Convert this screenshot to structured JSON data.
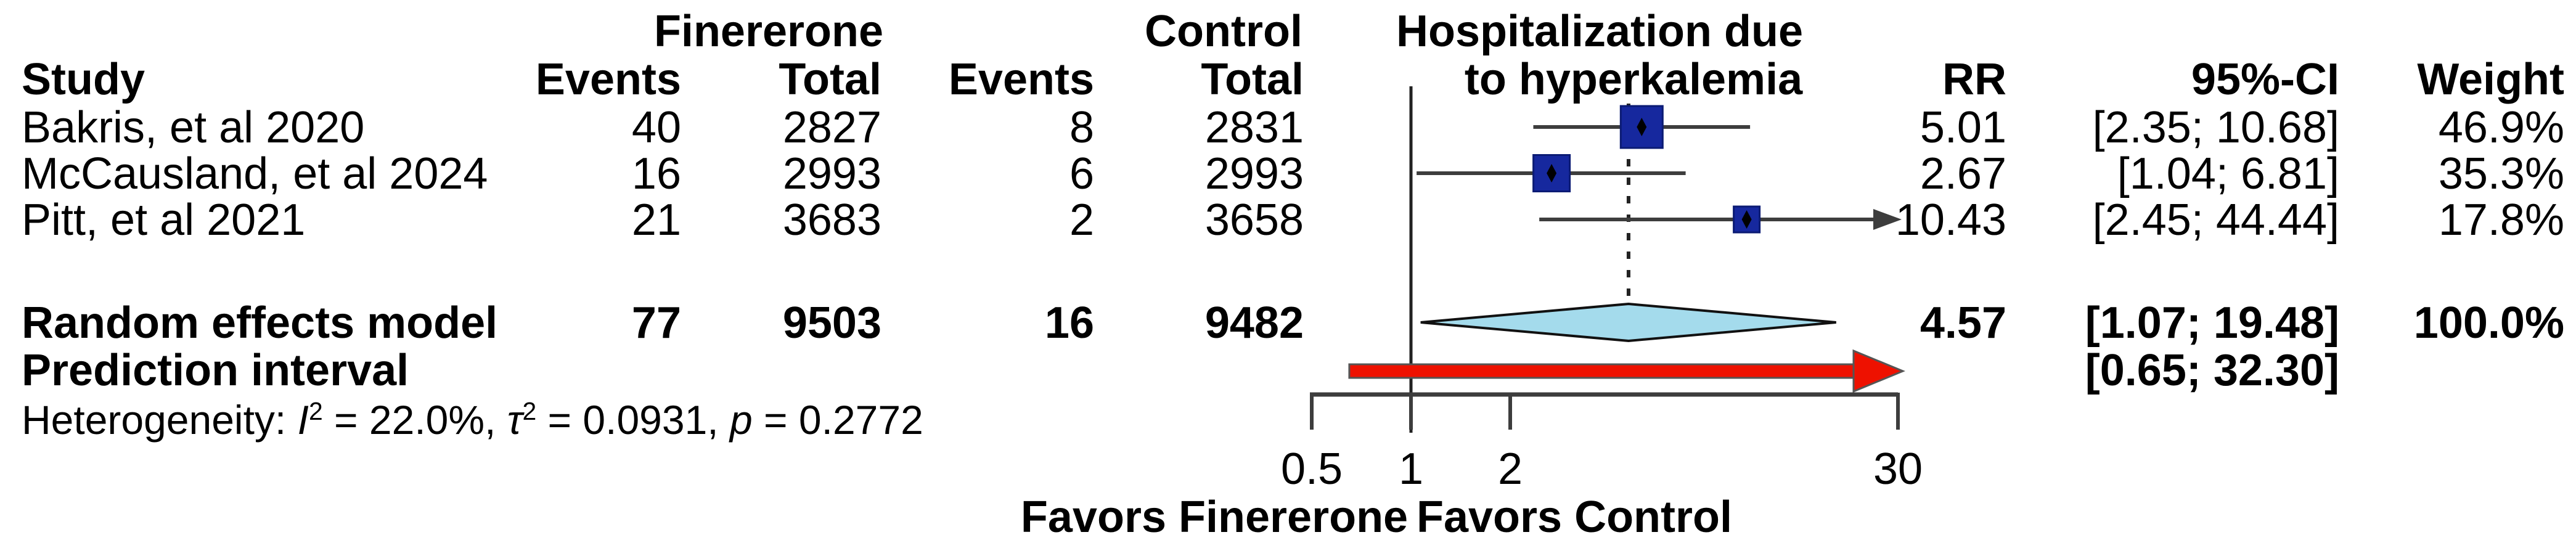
{
  "table": {
    "group_headers": {
      "treatment": "Finererone",
      "control": "Control"
    },
    "plot_header_line1": "Hospitalization due",
    "plot_header_line2": "to hyperkalemia",
    "col_headers": {
      "study": "Study",
      "events_trt": "Events",
      "total_trt": "Total",
      "events_ctl": "Events",
      "total_ctl": "Total",
      "rr": "RR",
      "ci": "95%-CI",
      "weight": "Weight"
    },
    "rows": [
      {
        "study": "Bakris, et al 2020",
        "e1": "40",
        "t1": "2827",
        "e2": "8",
        "t2": "2831",
        "rr": "5.01",
        "ci": "[2.35; 10.68]",
        "weight": "46.9%"
      },
      {
        "study": "McCausland, et al 2024",
        "e1": "16",
        "t1": "2993",
        "e2": "6",
        "t2": "2993",
        "rr": "2.67",
        "ci": "[1.04; 6.81]",
        "weight": "35.3%"
      },
      {
        "study": "Pitt, et al 2021",
        "e1": "21",
        "t1": "3683",
        "e2": "2",
        "t2": "3658",
        "rr": "10.43",
        "ci": "[2.45; 44.44]",
        "weight": "17.8%"
      }
    ],
    "summary_row": {
      "study": "Random effects model",
      "e1": "77",
      "t1": "9503",
      "e2": "16",
      "t2": "9482",
      "rr": "4.57",
      "ci": "[1.07; 19.48]",
      "weight": "100.0%"
    },
    "prediction_row": {
      "label": "Prediction interval",
      "ci": "[0.65; 32.30]"
    },
    "heterogeneity": {
      "prefix": "Heterogeneity: ",
      "i_sym": "I",
      "i_sup": "2",
      "i_val": " = 22.0%, ",
      "tau_sym": "τ",
      "tau_sup": "2",
      "tau_val": " = 0.0931, ",
      "p_sym": "p",
      "p_val": " = 0.2772"
    }
  },
  "axis": {
    "tick_labels": [
      "0.5",
      "1",
      "2",
      "30"
    ],
    "favors_left": "Favors Finererone",
    "favors_right": "Favors Control"
  },
  "chart_data": {
    "type": "forest",
    "x_scale": "log",
    "x_range": [
      0.5,
      30
    ],
    "x_ticks": [
      0.5,
      1,
      2,
      30
    ],
    "ref_line": 1,
    "pooled_dashed_line": 4.57,
    "effect_measure": "RR",
    "studies": [
      {
        "name": "Bakris, et al 2020",
        "events_trt": 40,
        "total_trt": 2827,
        "events_ctl": 8,
        "total_ctl": 2831,
        "rr": 5.01,
        "ci_low": 2.35,
        "ci_high": 10.68,
        "weight_pct": 46.9
      },
      {
        "name": "McCausland, et al 2024",
        "events_trt": 16,
        "total_trt": 2993,
        "events_ctl": 6,
        "total_ctl": 2993,
        "rr": 2.67,
        "ci_low": 1.04,
        "ci_high": 6.81,
        "weight_pct": 35.3
      },
      {
        "name": "Pitt, et al 2021",
        "events_trt": 21,
        "total_trt": 3683,
        "events_ctl": 2,
        "total_ctl": 3658,
        "rr": 10.43,
        "ci_low": 2.45,
        "ci_high": 44.44,
        "weight_pct": 17.8
      }
    ],
    "summary": {
      "name": "Random effects model",
      "events_trt": 77,
      "total_trt": 9503,
      "events_ctl": 16,
      "total_ctl": 9482,
      "rr": 4.57,
      "ci_low": 1.07,
      "ci_high": 19.48,
      "weight_pct": 100.0
    },
    "prediction_interval": {
      "ci_low": 0.65,
      "ci_high": 32.3
    },
    "heterogeneity": {
      "i2_pct": 22.0,
      "tau2": 0.0931,
      "p": 0.2772
    },
    "title": "Hospitalization due to hyperkalemia",
    "legend_left": "Favors Finererone",
    "legend_right": "Favors Control"
  },
  "colors": {
    "square_fill": "#16289e",
    "square_stroke": "#0b1b74",
    "marker_dot": "#000000",
    "diamond_fill": "#a4dbec",
    "diamond_stroke": "#111111",
    "prediction_fill": "#ee1100",
    "prediction_stroke": "#555555",
    "line": "#3d3d3d",
    "ref_line": "#222222",
    "text": "#000000"
  }
}
